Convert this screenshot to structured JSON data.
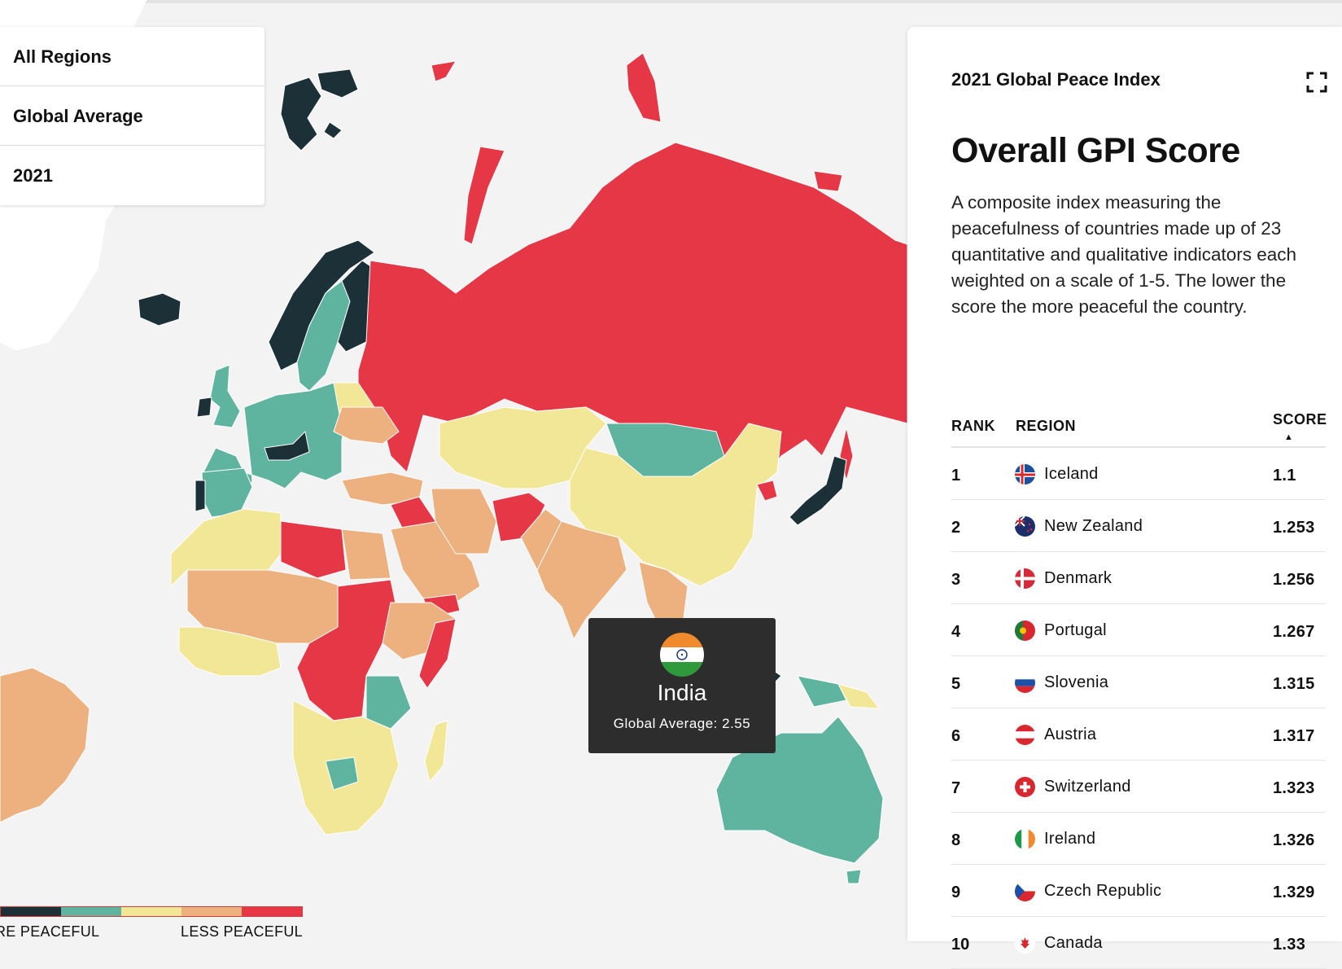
{
  "colors": {
    "most_peaceful": "#1c3038",
    "peaceful": "#5fb49f",
    "mid": "#f2e796",
    "less": "#ecb17f",
    "least": "#e53746",
    "land_unrated": "#ffffff",
    "ocean": "#f3f3f3"
  },
  "filters": {
    "region": "All Regions",
    "measure": "Global Average",
    "year": "2021"
  },
  "legend": {
    "left_label": "RE PEACEFUL",
    "right_label": "LESS PEACEFUL"
  },
  "tooltip": {
    "country": "India",
    "label": "Global Average: 2.55",
    "flag_icon": "india-flag-icon"
  },
  "panel": {
    "title": "2021 Global Peace Index",
    "heading": "Overall GPI Score",
    "description": "A composite index measuring the peacefulness of countries made up of 23 quantitative and qualitative indicators each weighted on a scale of 1-5. The lower the score the more peaceful the country.",
    "expand_icon": "fullscreen-icon",
    "columns": {
      "rank": "RANK",
      "region": "REGION",
      "score": "SCORE",
      "sort_arrow": "▲"
    },
    "rows": [
      {
        "rank": "1",
        "region": "Iceland",
        "score": "1.1",
        "flag": "iceland"
      },
      {
        "rank": "2",
        "region": "New Zealand",
        "score": "1.253",
        "flag": "newzealand"
      },
      {
        "rank": "3",
        "region": "Denmark",
        "score": "1.256",
        "flag": "denmark"
      },
      {
        "rank": "4",
        "region": "Portugal",
        "score": "1.267",
        "flag": "portugal"
      },
      {
        "rank": "5",
        "region": "Slovenia",
        "score": "1.315",
        "flag": "slovenia"
      },
      {
        "rank": "6",
        "region": "Austria",
        "score": "1.317",
        "flag": "austria"
      },
      {
        "rank": "7",
        "region": "Switzerland",
        "score": "1.323",
        "flag": "switzerland"
      },
      {
        "rank": "8",
        "region": "Ireland",
        "score": "1.326",
        "flag": "ireland"
      },
      {
        "rank": "9",
        "region": "Czech Republic",
        "score": "1.329",
        "flag": "czech"
      },
      {
        "rank": "10",
        "region": "Canada",
        "score": "1.33",
        "flag": "canada"
      }
    ]
  }
}
